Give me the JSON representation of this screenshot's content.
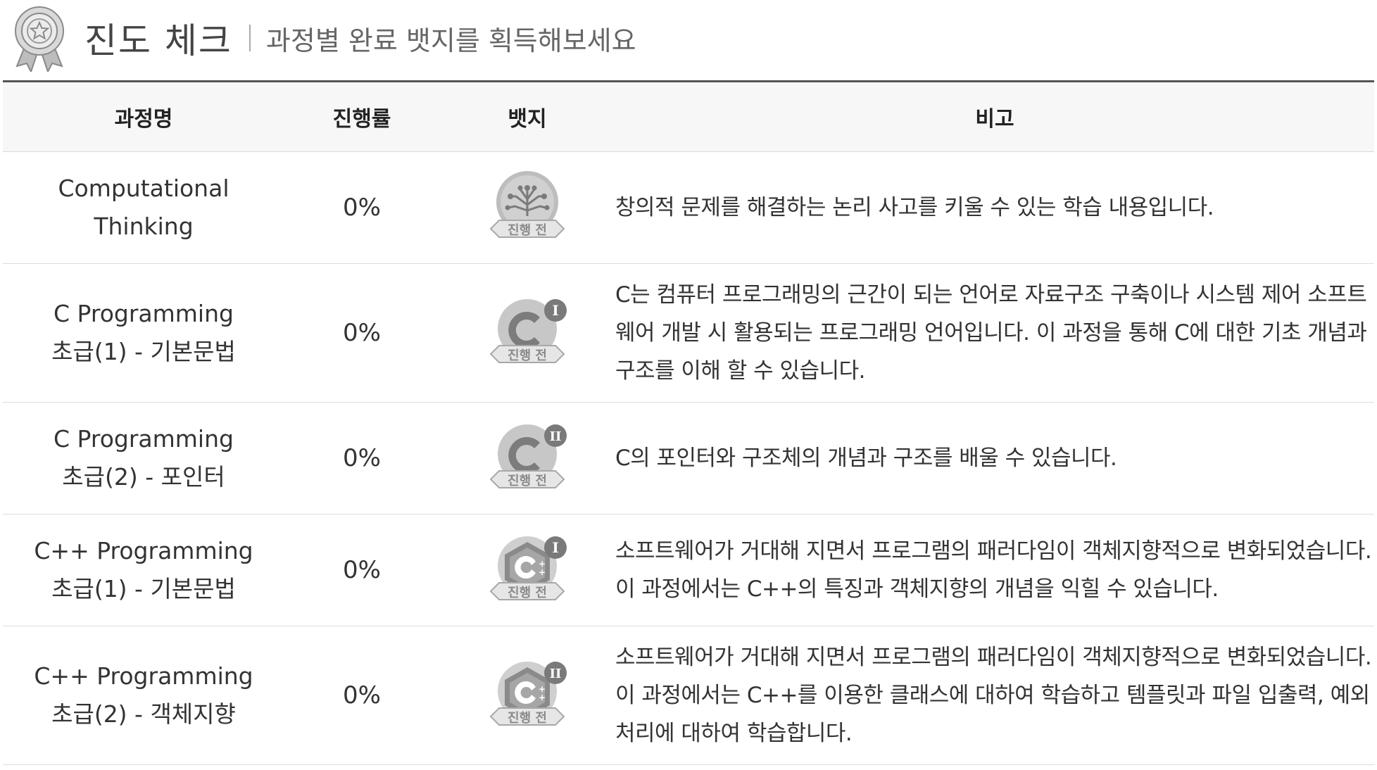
{
  "header": {
    "title": "진도 체크",
    "subtitle": "과정별 완료 뱃지를 획득해보세요",
    "icon": "award-medal-icon"
  },
  "table": {
    "columns": [
      "과정명",
      "진행률",
      "뱃지",
      "비고"
    ],
    "rows": [
      {
        "name_line1": "Computational",
        "name_line2": "Thinking",
        "progress": "0%",
        "badge": {
          "icon": "circuit-brain-icon",
          "label": "진행 전"
        },
        "note": "창의적 문제를 해결하는 논리 사고를 키울 수 있는 학습 내용입니다."
      },
      {
        "name_line1": "C Programming",
        "name_line2": "초급(1) - 기본문법",
        "progress": "0%",
        "badge": {
          "icon": "c-language-icon",
          "level": "I",
          "label": "진행 전"
        },
        "note": "C는 컴퓨터 프로그래밍의 근간이 되는 언어로 자료구조 구축이나 시스템 제어 소프트웨어 개발 시 활용되는 프로그래밍 언어입니다. 이 과정을 통해 C에 대한 기초 개념과 구조를 이해 할 수 있습니다."
      },
      {
        "name_line1": "C Programming",
        "name_line2": "초급(2) - 포인터",
        "progress": "0%",
        "badge": {
          "icon": "c-language-icon",
          "level": "II",
          "label": "진행 전"
        },
        "note": "C의 포인터와 구조체의 개념과 구조를 배울 수 있습니다."
      },
      {
        "name_line1": "C++ Programming",
        "name_line2": "초급(1) - 기본문법",
        "progress": "0%",
        "badge": {
          "icon": "cpp-language-icon",
          "level": "I",
          "label": "진행 전"
        },
        "note": "소프트웨어가 거대해 지면서 프로그램의 패러다임이 객체지향적으로 변화되었습니다. 이 과정에서는 C++의 특징과 객체지향의 개념을 익힐 수 있습니다."
      },
      {
        "name_line1": "C++ Programming",
        "name_line2": "초급(2) - 객체지향",
        "progress": "0%",
        "badge": {
          "icon": "cpp-language-icon",
          "level": "II",
          "label": "진행 전"
        },
        "note": "소프트웨어가 거대해 지면서 프로그램의 패러다임이 객체지향적으로 변화되었습니다. 이 과정에서는 C++를 이용한 클래스에 대하여 학습하고 템플릿과 파일 입출력, 예외처리에 대하여 학습합니다."
      }
    ]
  },
  "colors": {
    "header_text": "#444444",
    "table_border": "#555555",
    "header_bg": "#f7f7f7",
    "badge_gray": "#b9b9b9",
    "badge_dark": "#7a7a7a"
  }
}
